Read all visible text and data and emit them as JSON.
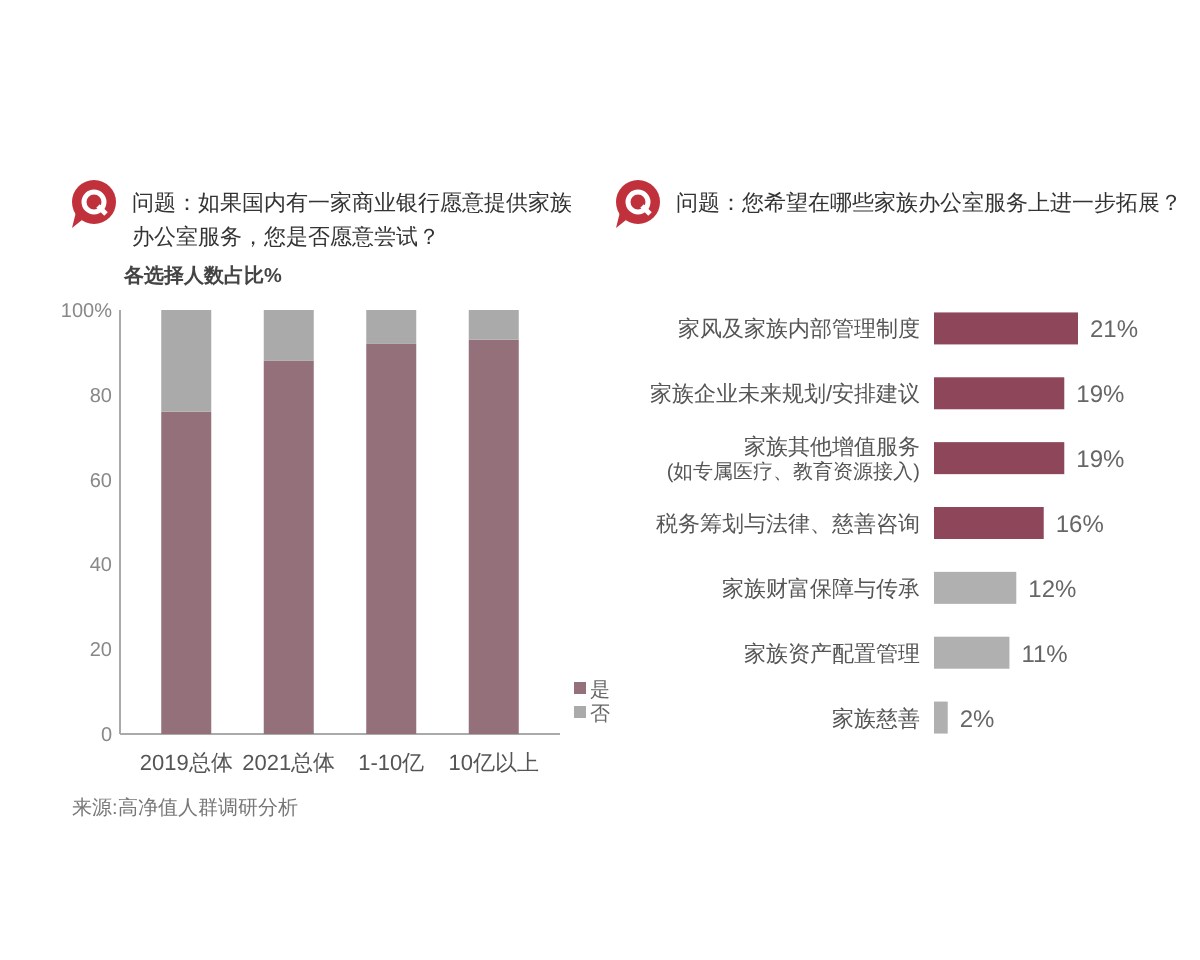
{
  "chart_data": [
    {
      "type": "bar",
      "title": "问题：如果国内有一家商业银行愿意提供家族办公室服务，您是否愿意尝试？",
      "ylabel": "各选择人数占比%",
      "categories": [
        "2019总体",
        "2021总体",
        "1-10亿",
        "10亿以上"
      ],
      "series": [
        {
          "name": "是",
          "color": "#94707a",
          "values": [
            76,
            88,
            92,
            93
          ]
        },
        {
          "name": "否",
          "color": "#aaaaaa",
          "values": [
            24,
            12,
            8,
            7
          ]
        }
      ],
      "stacked": true,
      "ylim": [
        0,
        100
      ],
      "yticks": [
        0,
        20,
        40,
        60,
        80,
        {
          "value": 100,
          "label": "100%"
        }
      ],
      "legend": "bottom right",
      "annotations": [
        "来源:高净值人群调研分析"
      ]
    },
    {
      "type": "bar",
      "orientation": "horizontal",
      "title": "问题：您希望在哪些家族办公室服务上进一步拓展？",
      "categories": [
        "家风及家族内部管理制度",
        "家族企业未来规划/安排建议",
        "家族其他增值服务\n(如专属医疗、教育资源接入)",
        "税务筹划与法律、慈善咨询",
        "家族财富保障与传承",
        "家族资产配置管理",
        "家族慈善"
      ],
      "values": [
        21,
        19,
        19,
        16,
        12,
        11,
        2
      ],
      "colors": [
        "#8e465a",
        "#8e465a",
        "#8e465a",
        "#8e465a",
        "#b0b0b0",
        "#b0b0b0",
        "#b0b0b0"
      ],
      "value_labels": [
        "21%",
        "19%",
        "19%",
        "16%",
        "12%",
        "11%",
        "2%"
      ]
    }
  ]
}
